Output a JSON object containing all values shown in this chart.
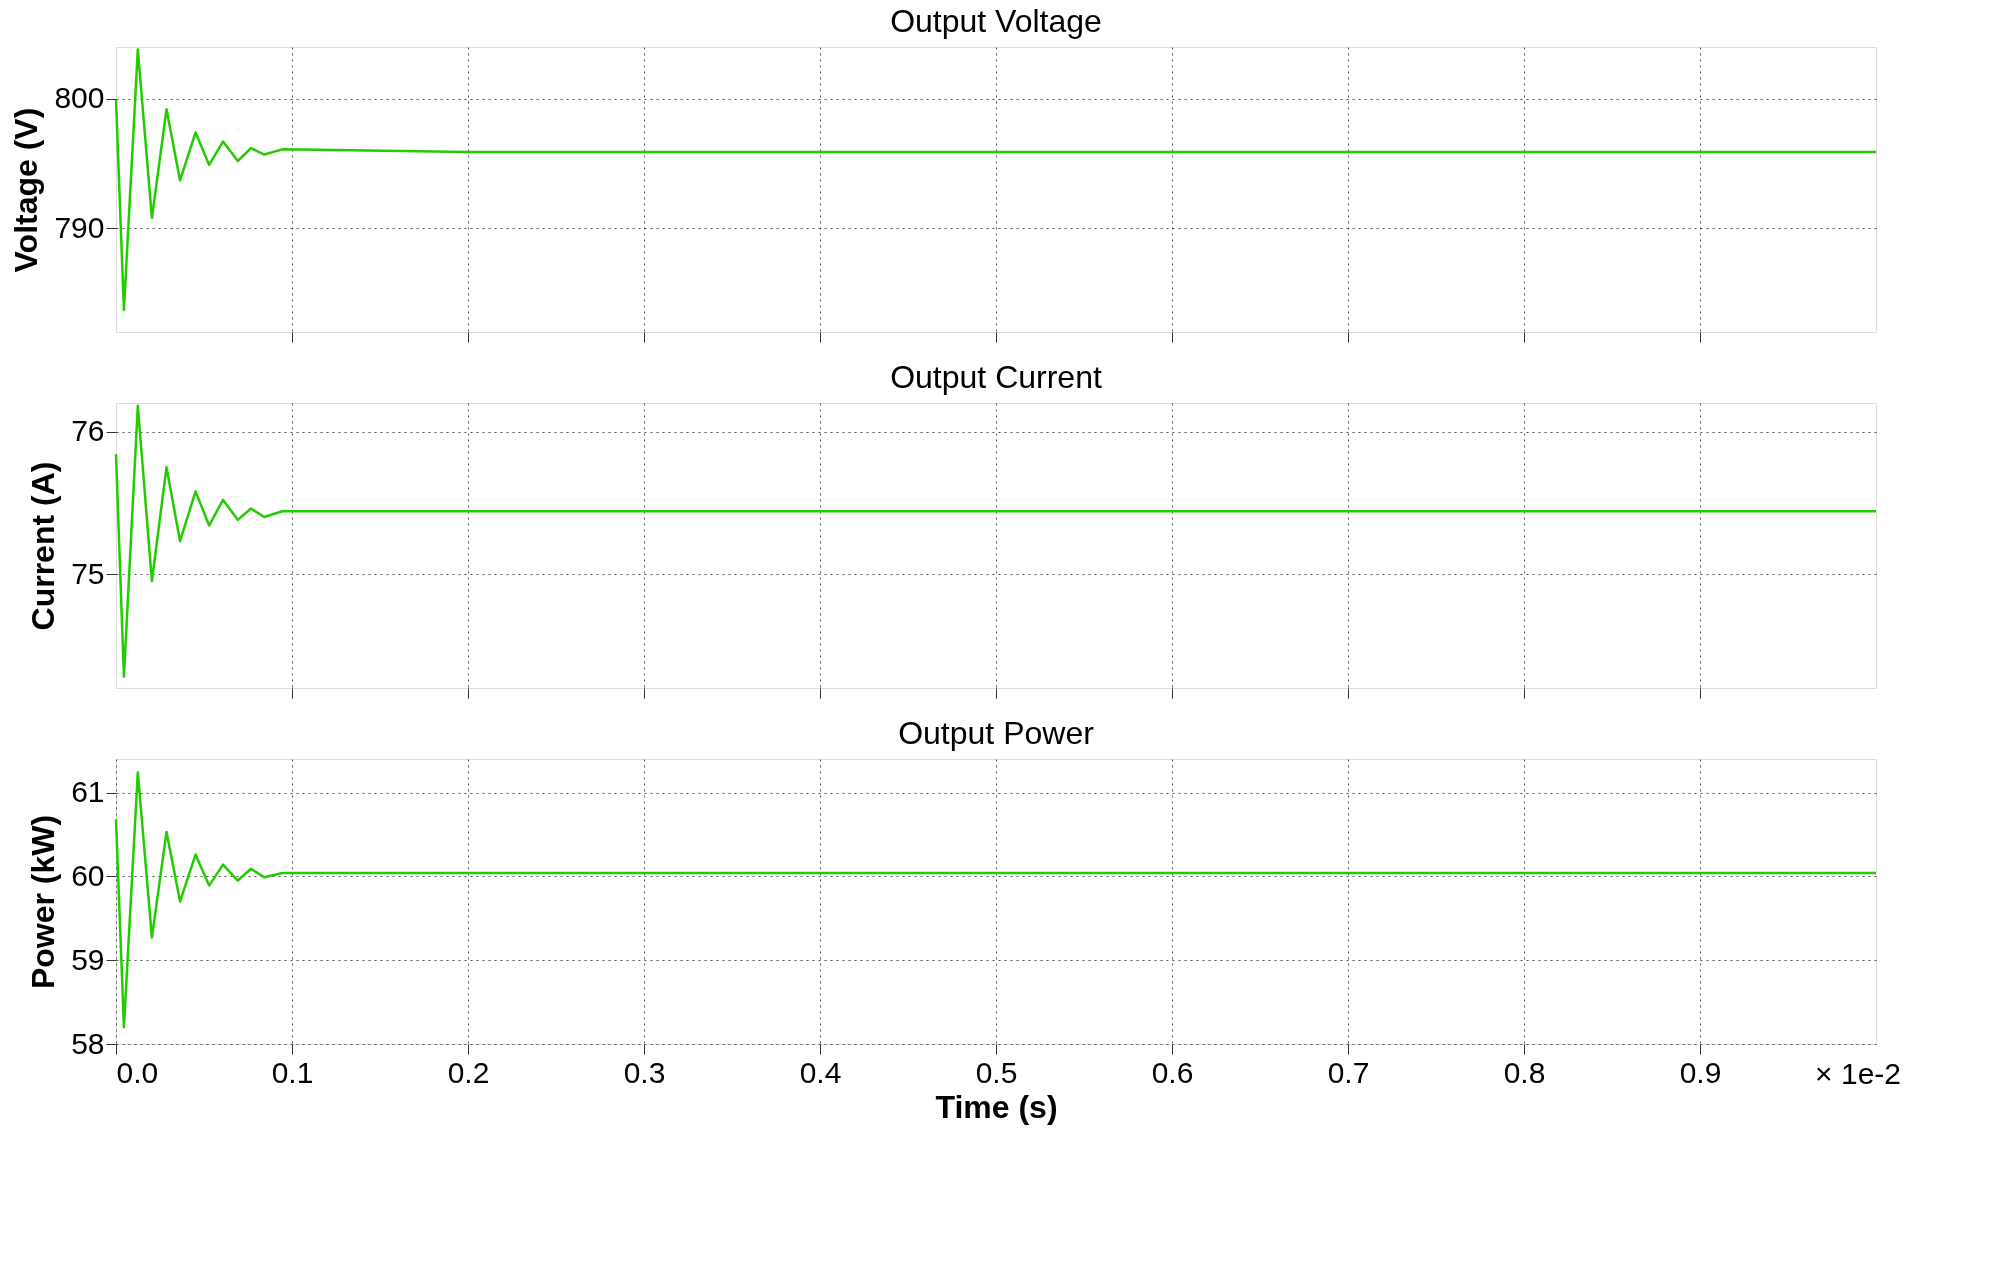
{
  "chart_data": [
    {
      "type": "line",
      "title": "Output Voltage",
      "ylabel": "Voltage (V)",
      "x": [
        0,
        0.0045,
        0.0124,
        0.0204,
        0.0287,
        0.0364,
        0.0452,
        0.0529,
        0.0608,
        0.0692,
        0.0767,
        0.0842,
        0.0945,
        0.2,
        0.3,
        0.4,
        0.5,
        0.6,
        0.7,
        0.8,
        0.9,
        1.0
      ],
      "xlim": [
        0,
        1.0
      ],
      "xticks": [
        0.1,
        0.2,
        0.3,
        0.4,
        0.5,
        0.6,
        0.7,
        0.8,
        0.9
      ],
      "ylim": [
        782,
        804
      ],
      "yticks": [
        790,
        800
      ],
      "grid": true,
      "tick_labels": "y",
      "series": [
        {
          "color": "#22cc00",
          "values": [
            799.9,
            783.7,
            803.8,
            790.8,
            799.2,
            793.7,
            797.4,
            794.9,
            796.7,
            795.2,
            796.2,
            795.7,
            796.1,
            795.9,
            795.9,
            795.9,
            795.9,
            795.9,
            795.9,
            795.9,
            795.9,
            795.9
          ]
        }
      ]
    },
    {
      "type": "line",
      "title": "Output Current",
      "ylabel": "Current (A)",
      "x": [
        0,
        0.0045,
        0.0124,
        0.0204,
        0.0287,
        0.0364,
        0.0452,
        0.0529,
        0.0608,
        0.0692,
        0.0767,
        0.0842,
        0.0945,
        0.2,
        0.3,
        0.4,
        0.5,
        0.6,
        0.7,
        0.8,
        0.9,
        1.0
      ],
      "xlim": [
        0,
        1.0
      ],
      "xticks": [
        0.1,
        0.2,
        0.3,
        0.4,
        0.5,
        0.6,
        0.7,
        0.8,
        0.9
      ],
      "ylim": [
        74.2,
        76.2
      ],
      "yticks": [
        75,
        76
      ],
      "grid": true,
      "tick_labels": "y",
      "series": [
        {
          "color": "#22cc00",
          "values": [
            75.84,
            74.28,
            76.18,
            74.95,
            75.75,
            75.23,
            75.58,
            75.34,
            75.52,
            75.38,
            75.46,
            75.4,
            75.44,
            75.44,
            75.44,
            75.44,
            75.44,
            75.44,
            75.44,
            75.44,
            75.44,
            75.44
          ]
        }
      ]
    },
    {
      "type": "line",
      "title": "Output Power",
      "ylabel": "Power (kW)",
      "xlabel": "Time (s)",
      "annotations": [
        "× 1e-2"
      ],
      "x": [
        0,
        0.0045,
        0.0124,
        0.0204,
        0.0287,
        0.0364,
        0.0452,
        0.0529,
        0.0608,
        0.0692,
        0.0767,
        0.0842,
        0.0945,
        0.2,
        0.3,
        0.4,
        0.5,
        0.6,
        0.7,
        0.8,
        0.9,
        1.0
      ],
      "xlim": [
        0,
        1.0
      ],
      "ylim": [
        58,
        61.4
      ],
      "yticks": [
        58,
        59,
        60,
        61
      ],
      "grid": true,
      "xticks": [
        {
          "value": 0,
          "label": "0.0"
        },
        0.1,
        0.2,
        0.3,
        0.4,
        0.5,
        0.6,
        0.7,
        0.8,
        0.9
      ],
      "series": [
        {
          "color": "#22cc00",
          "values": [
            60.68,
            58.2,
            61.24,
            59.27,
            60.53,
            59.7,
            60.26,
            59.89,
            60.14,
            59.95,
            60.09,
            59.99,
            60.04,
            60.04,
            60.04,
            60.04,
            60.04,
            60.04,
            60.04,
            60.04,
            60.04,
            60.04
          ]
        }
      ]
    }
  ]
}
